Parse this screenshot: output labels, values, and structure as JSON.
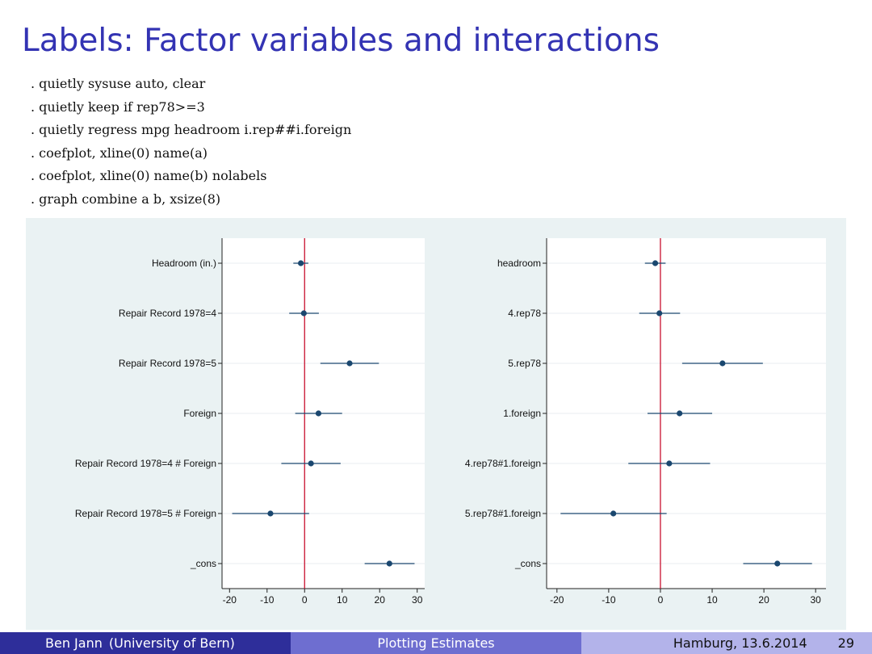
{
  "slide": {
    "title": "Labels: Factor variables and interactions"
  },
  "code_lines": [
    ". quietly sysuse auto, clear",
    ". quietly keep if rep78>=3",
    ". quietly regress mpg headroom i.rep##i.foreign",
    ". coefplot, xline(0) name(a)",
    ". coefplot, xline(0) name(b) nolabels",
    ". graph combine a b, xsize(8)"
  ],
  "chart_data": [
    {
      "type": "scatter",
      "name": "a",
      "title": "",
      "xlabel": "",
      "ylabel": "",
      "xlim": [
        -22,
        32
      ],
      "xticks": [
        -20,
        -10,
        0,
        10,
        20,
        30
      ],
      "xline": 0,
      "categories": [
        "Headroom (in.)",
        "Repair Record 1978=4",
        "Repair Record 1978=5",
        "Foreign",
        "Repair Record 1978=4 # Foreign",
        "Repair Record 1978=5 # Foreign",
        "_cons"
      ],
      "estimates": [
        -1.0,
        -0.2,
        12.0,
        3.7,
        1.7,
        -9.1,
        22.6
      ],
      "ci_low": [
        -3.0,
        -4.1,
        4.2,
        -2.5,
        -6.2,
        -19.3,
        16.0
      ],
      "ci_high": [
        1.0,
        3.8,
        19.8,
        10.0,
        9.6,
        1.2,
        29.3
      ]
    },
    {
      "type": "scatter",
      "name": "b",
      "title": "",
      "xlabel": "",
      "ylabel": "",
      "xlim": [
        -22,
        32
      ],
      "xticks": [
        -20,
        -10,
        0,
        10,
        20,
        30
      ],
      "xline": 0,
      "categories": [
        "headroom",
        "4.rep78",
        "5.rep78",
        "1.foreign",
        "4.rep78#1.foreign",
        "5.rep78#1.foreign",
        "_cons"
      ],
      "estimates": [
        -1.0,
        -0.2,
        12.0,
        3.7,
        1.7,
        -9.1,
        22.6
      ],
      "ci_low": [
        -3.0,
        -4.1,
        4.2,
        -2.5,
        -6.2,
        -19.3,
        16.0
      ],
      "ci_high": [
        1.0,
        3.8,
        19.8,
        10.0,
        9.6,
        1.2,
        29.3
      ]
    }
  ],
  "colors": {
    "marker": "#1a476f",
    "ci_line": "#1a476f",
    "xline": "#c8102e",
    "gridline": "#e8eef2",
    "panel_bg": "#eaf2f3",
    "plot_bg": "#ffffff"
  },
  "footer": {
    "author": "Ben Jann",
    "affiliation": "(University of Bern)",
    "talk_title": "Plotting Estimates",
    "place_date": "Hamburg, 13.6.2014",
    "page": "29"
  }
}
